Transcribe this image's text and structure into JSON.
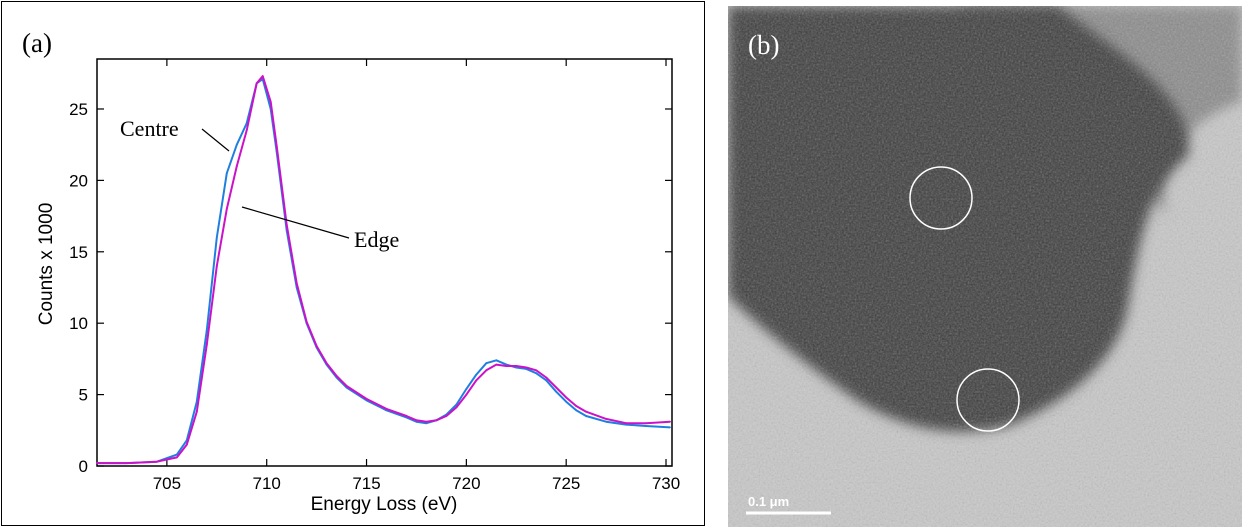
{
  "panel_a": {
    "label": "(a)"
  },
  "panel_b": {
    "label": "(b)",
    "scale_bar_label": "0.1 μm",
    "markers": 2
  },
  "chart_data": {
    "type": "line",
    "xlabel": "Energy Loss (eV)",
    "ylabel": "Counts x 1000",
    "xlim": [
      701.5,
      730.3
    ],
    "ylim": [
      0,
      28.5
    ],
    "x_ticks": [
      705,
      710,
      715,
      720,
      725,
      730
    ],
    "y_ticks": [
      0,
      5,
      10,
      15,
      20,
      25
    ],
    "grid": false,
    "annotations": [
      "Centre",
      "Edge"
    ],
    "series": [
      {
        "color": "#1f7fe0",
        "x": [
          701.5,
          703,
          704.5,
          705.5,
          706,
          706.5,
          707,
          707.5,
          708,
          708.5,
          709,
          709.5,
          709.8,
          710.2,
          710.5,
          711,
          711.5,
          712,
          712.5,
          713,
          713.5,
          714,
          715,
          716,
          717,
          717.5,
          718,
          718.5,
          719,
          719.5,
          720,
          720.5,
          721,
          721.5,
          722,
          722.5,
          723,
          723.5,
          724,
          724.5,
          725,
          725.5,
          726,
          727,
          728,
          729,
          730.2
        ],
        "y": [
          0.2,
          0.2,
          0.3,
          0.8,
          1.8,
          4.5,
          9.5,
          16.0,
          20.5,
          22.5,
          24.0,
          26.8,
          27.1,
          25.0,
          22.0,
          16.5,
          12.5,
          10.0,
          8.3,
          7.1,
          6.2,
          5.5,
          4.6,
          3.9,
          3.4,
          3.1,
          3.0,
          3.2,
          3.6,
          4.3,
          5.4,
          6.4,
          7.2,
          7.4,
          7.1,
          6.9,
          6.8,
          6.5,
          6.0,
          5.2,
          4.5,
          3.9,
          3.5,
          3.1,
          2.9,
          2.8,
          2.7
        ]
      },
      {
        "color": "#cc12c8",
        "x": [
          701.5,
          703,
          704.5,
          705.5,
          706,
          706.5,
          707,
          707.5,
          708,
          708.5,
          709,
          709.5,
          709.8,
          710.2,
          710.5,
          711,
          711.5,
          712,
          712.5,
          713,
          713.5,
          714,
          715,
          716,
          717,
          717.5,
          718,
          718.5,
          719,
          719.5,
          720,
          720.5,
          721,
          721.5,
          722,
          722.5,
          723,
          723.5,
          724,
          724.5,
          725,
          725.5,
          726,
          727,
          728,
          729,
          730.2
        ],
        "y": [
          0.2,
          0.2,
          0.3,
          0.6,
          1.5,
          3.8,
          8.5,
          14.0,
          18.0,
          21.0,
          23.5,
          26.8,
          27.3,
          25.5,
          22.4,
          16.9,
          12.8,
          10.1,
          8.4,
          7.2,
          6.3,
          5.6,
          4.7,
          4.0,
          3.5,
          3.2,
          3.1,
          3.2,
          3.5,
          4.1,
          5.0,
          6.0,
          6.7,
          7.1,
          7.0,
          7.0,
          6.9,
          6.7,
          6.2,
          5.5,
          4.8,
          4.2,
          3.8,
          3.3,
          3.0,
          3.0,
          3.1
        ]
      }
    ]
  }
}
